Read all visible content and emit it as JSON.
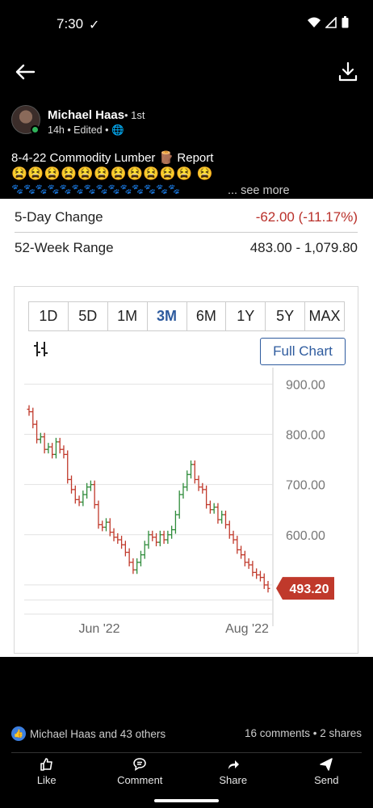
{
  "status_bar": {
    "time": "7:30",
    "check_icon": "check-icon",
    "icons": [
      "wifi-icon",
      "signal-icon",
      "battery-icon"
    ]
  },
  "app_bar": {
    "back_icon": "arrow-left-icon",
    "download_icon": "download-icon"
  },
  "post": {
    "author": "Michael Haas",
    "degree": "• 1st",
    "meta": "14h • Edited •",
    "title_line": "8-4-22 Commodity Lumber 🪵 Report",
    "emoji_line": "😫😫😫😫😫😫😫😫😫😫😫 😫",
    "paw_line": "🐾🐾🐾🐾🐾🐾🐾🐾🐾🐾🐾🐾🐾🐾",
    "see_more": "... see more"
  },
  "quote": {
    "rows": [
      {
        "label": "5-Day Change",
        "value": "-62.00 (-11.17%)"
      },
      {
        "label": "52-Week Range",
        "value": "483.00 - 1,079.80"
      }
    ],
    "tabs": [
      "1D",
      "5D",
      "1M",
      "3M",
      "6M",
      "1Y",
      "5Y",
      "MAX"
    ],
    "active_tab": "3M",
    "full_chart_label": "Full Chart",
    "colors": {
      "up": "#2e8b3a",
      "down": "#c0392b",
      "accent": "#2e5b9e"
    }
  },
  "chart_data": {
    "type": "ohlc",
    "y_ticks": [
      "900.00",
      "800.00",
      "700.00",
      "600.00"
    ],
    "ylim": [
      450,
      920
    ],
    "x_ticks": [
      "Jun '22",
      "Aug '22"
    ],
    "last_price": "493.20",
    "closes": [
      845,
      820,
      790,
      795,
      770,
      775,
      760,
      785,
      770,
      760,
      710,
      690,
      670,
      665,
      680,
      695,
      700,
      660,
      620,
      615,
      625,
      605,
      595,
      590,
      580,
      565,
      545,
      530,
      545,
      560,
      580,
      600,
      595,
      585,
      600,
      590,
      600,
      610,
      640,
      680,
      695,
      720,
      740,
      710,
      695,
      690,
      660,
      650,
      655,
      630,
      640,
      620,
      600,
      590,
      570,
      560,
      545,
      540,
      525,
      520,
      515,
      500,
      493
    ]
  },
  "footer": {
    "reactions": "Michael Haas and 43 others",
    "counts": "16 comments • 2 shares",
    "actions": [
      "Like",
      "Comment",
      "Share",
      "Send"
    ]
  }
}
